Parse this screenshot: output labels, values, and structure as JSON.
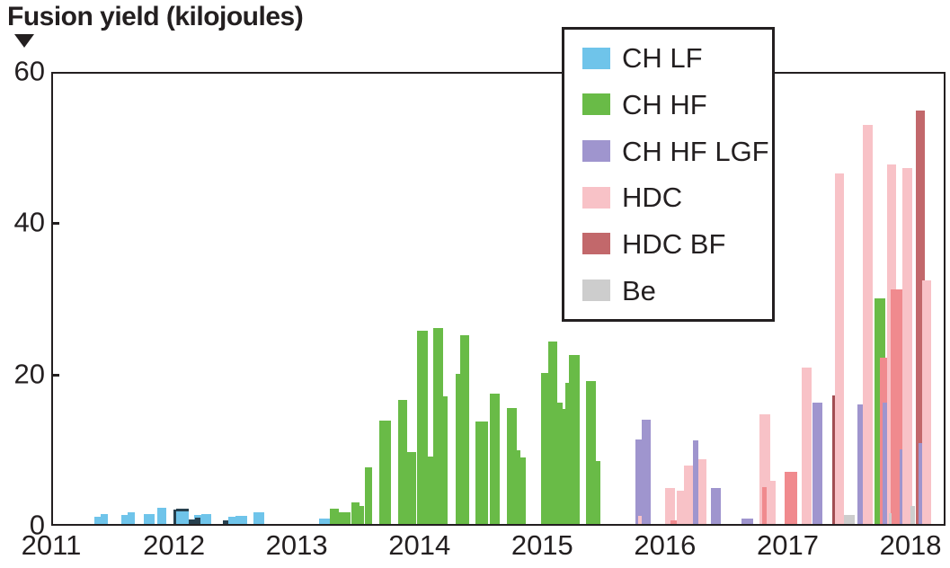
{
  "header": {
    "title": "Fusion yield (kilojoules)"
  },
  "chart_data": {
    "type": "bar",
    "title": "Fusion yield (kilojoules)",
    "xlabel": "",
    "ylabel": "Fusion yield (kilojoules)",
    "xlim": [
      2011,
      2018.285
    ],
    "ylim": [
      0,
      60
    ],
    "x_ticks": [
      2011,
      2012,
      2013,
      2014,
      2015,
      2016,
      2017,
      2018
    ],
    "y_ticks": [
      0,
      20,
      40,
      60
    ],
    "grid": false,
    "legend_position": "top-right-inset",
    "legend": [
      {
        "key": "chlf",
        "label": "CH LF"
      },
      {
        "key": "chhf",
        "label": "CH HF"
      },
      {
        "key": "chhflgf",
        "label": "CH HF LGF"
      },
      {
        "key": "hdc",
        "label": "HDC"
      },
      {
        "key": "hdcbf",
        "label": "HDC BF"
      },
      {
        "key": "be",
        "label": "Be"
      }
    ],
    "colors": {
      "chlf": "#6fc4ea",
      "chhf": "#69bb47",
      "chhflgf": "#9f95ce",
      "hdc": "#f8c2c7",
      "hdc_dark": "#f08a8e",
      "hdcbf": "#c2686b",
      "hdcbf_dark": "#a24e53",
      "be": "#cdcdcd",
      "navy": "#27404e"
    },
    "bars": [
      [
        2015.998,
        2016.079,
        4.7,
        "hdc"
      ],
      [
        2016.093,
        2016.152,
        4.4,
        "hdc"
      ],
      [
        2016.152,
        2016.225,
        7.7,
        "hdc"
      ],
      [
        2016.269,
        2016.335,
        8.6,
        "hdc"
      ],
      [
        2016.766,
        2016.854,
        14.5,
        "hdc"
      ],
      [
        2016.825,
        2016.898,
        5.7,
        "hdc"
      ],
      [
        2017.11,
        2017.191,
        20.7,
        "hdc"
      ],
      [
        2017.381,
        2017.461,
        46.3,
        "hdc"
      ],
      [
        2017.608,
        2017.695,
        52.8,
        "hdc"
      ],
      [
        2017.806,
        2017.886,
        47.5,
        "hdc"
      ],
      [
        2017.937,
        2018.011,
        47.1,
        "hdc"
      ],
      [
        2013.268,
        2013.342,
        2.0,
        "chhf"
      ],
      [
        2013.342,
        2013.437,
        1.6,
        "chhf"
      ],
      [
        2013.444,
        2013.51,
        2.9,
        "chhf"
      ],
      [
        2013.51,
        2013.547,
        2.4,
        "chhf"
      ],
      [
        2013.554,
        2013.612,
        7.5,
        "chhf"
      ],
      [
        2013.671,
        2013.766,
        13.7,
        "chhf"
      ],
      [
        2013.825,
        2013.898,
        16.4,
        "chhf"
      ],
      [
        2013.898,
        2013.971,
        9.5,
        "chhf"
      ],
      [
        2013.978,
        2014.066,
        25.6,
        "chhf"
      ],
      [
        2014.066,
        2014.11,
        8.9,
        "chhf"
      ],
      [
        2014.11,
        2014.19,
        25.9,
        "chhf"
      ],
      [
        2014.19,
        2014.227,
        16.9,
        "chhf"
      ],
      [
        2014.293,
        2014.329,
        19.9,
        "chhf"
      ],
      [
        2014.329,
        2014.403,
        25.0,
        "chhf"
      ],
      [
        2014.454,
        2014.556,
        13.6,
        "chhf"
      ],
      [
        2014.571,
        2014.651,
        17.2,
        "chhf"
      ],
      [
        2014.71,
        2014.79,
        15.3,
        "chhf"
      ],
      [
        2014.79,
        2014.82,
        9.7,
        "chhf"
      ],
      [
        2014.82,
        2014.863,
        8.8,
        "chhf"
      ],
      [
        2014.988,
        2015.046,
        20.0,
        "chhf"
      ],
      [
        2015.046,
        2015.119,
        24.1,
        "chhf"
      ],
      [
        2015.119,
        2015.163,
        16.0,
        "chhf"
      ],
      [
        2015.163,
        2015.185,
        15.2,
        "chhf"
      ],
      [
        2015.185,
        2015.215,
        18.6,
        "chhf"
      ],
      [
        2015.215,
        2015.302,
        22.3,
        "chhf"
      ],
      [
        2015.354,
        2015.434,
        18.9,
        "chhf"
      ],
      [
        2015.434,
        2015.471,
        8.3,
        "chhf"
      ],
      [
        2017.703,
        2017.791,
        29.8,
        "chhf"
      ],
      [
        2016.042,
        2016.093,
        0.5,
        "hdc_dark"
      ],
      [
        2016.788,
        2016.825,
        4.9,
        "hdc_dark"
      ],
      [
        2016.971,
        2017.074,
        6.9,
        "hdc_dark"
      ],
      [
        2017.754,
        2017.806,
        22.0,
        "hdc_dark"
      ],
      [
        2017.842,
        2017.937,
        31.0,
        "hdc_dark"
      ],
      [
        2017.359,
        2017.381,
        17.0,
        "hdcbf_dark"
      ],
      [
        2018.04,
        2018.12,
        54.6,
        "hdcbf"
      ],
      [
        2018.098,
        2018.171,
        32.2,
        "hdc"
      ],
      [
        2015.756,
        2015.808,
        11.2,
        "chhflgf"
      ],
      [
        2015.808,
        2015.881,
        13.8,
        "chhflgf"
      ],
      [
        2016.225,
        2016.269,
        11.1,
        "chhflgf"
      ],
      [
        2016.371,
        2016.452,
        4.7,
        "chhflgf"
      ],
      [
        2016.62,
        2016.715,
        0.7,
        "chhflgf"
      ],
      [
        2017.198,
        2017.279,
        16.1,
        "chhflgf"
      ],
      [
        2017.571,
        2017.608,
        15.8,
        "chhflgf"
      ],
      [
        2017.776,
        2017.806,
        16.0,
        "chhflgf"
      ],
      [
        2017.915,
        2017.937,
        9.9,
        "chhflgf"
      ],
      [
        2018.069,
        2018.098,
        10.7,
        "chhflgf"
      ],
      [
        2015.778,
        2015.808,
        1.1,
        "hdc"
      ],
      [
        2017.461,
        2017.549,
        1.2,
        "be"
      ],
      [
        2017.827,
        2017.849,
        1.4,
        "be"
      ],
      [
        2017.996,
        2018.033,
        2.4,
        "be"
      ],
      [
        2011.351,
        2011.402,
        0.9,
        "chlf"
      ],
      [
        2011.402,
        2011.461,
        1.3,
        "chlf"
      ],
      [
        2011.571,
        2011.622,
        1.2,
        "chlf"
      ],
      [
        2011.622,
        2011.681,
        1.5,
        "chlf"
      ],
      [
        2011.754,
        2011.842,
        1.3,
        "chlf"
      ],
      [
        2011.864,
        2011.937,
        2.1,
        "chlf"
      ],
      [
        2012.017,
        2012.12,
        1.7,
        "chlf",
        "topline"
      ],
      [
        2012.163,
        2012.222,
        1.2,
        "chlf"
      ],
      [
        2012.222,
        2012.303,
        1.3,
        "chlf"
      ],
      [
        2012.442,
        2012.5,
        0.9,
        "chlf"
      ],
      [
        2012.5,
        2012.595,
        1.1,
        "chlf"
      ],
      [
        2012.646,
        2012.734,
        1.6,
        "chlf"
      ],
      [
        2013.181,
        2013.268,
        0.7,
        "chlf"
      ],
      [
        2011.995,
        2012.017,
        1.9,
        "navy"
      ],
      [
        2012.12,
        2012.171,
        0.65,
        "navy"
      ],
      [
        2012.171,
        2012.215,
        0.85,
        "navy"
      ],
      [
        2012.398,
        2012.442,
        0.5,
        "navy"
      ]
    ]
  }
}
